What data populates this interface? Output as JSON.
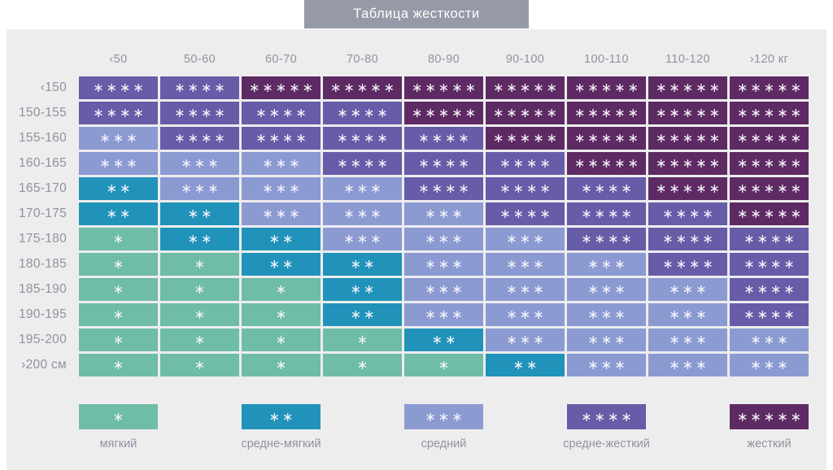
{
  "title": "Таблица жесткости",
  "chart_data": {
    "type": "heatmap",
    "title": "Таблица жесткости",
    "x_axis_note": "weight ranges, кг",
    "y_axis_note": "height ranges, см",
    "columns": [
      "‹50",
      "50-60",
      "60-70",
      "70-80",
      "80-90",
      "90-100",
      "100-110",
      "110-120",
      "›120 кг"
    ],
    "rows": [
      "‹150",
      "150-155",
      "155-160",
      "160-165",
      "165-170",
      "170-175",
      "175-180",
      "180-185",
      "185-190",
      "190-195",
      "195-200",
      "›200 см"
    ],
    "values": [
      [
        4,
        4,
        5,
        5,
        5,
        5,
        5,
        5,
        5
      ],
      [
        4,
        4,
        4,
        4,
        5,
        5,
        5,
        5,
        5
      ],
      [
        3,
        4,
        4,
        4,
        4,
        5,
        5,
        5,
        5
      ],
      [
        3,
        3,
        3,
        4,
        4,
        4,
        5,
        5,
        5
      ],
      [
        2,
        3,
        3,
        3,
        4,
        4,
        4,
        5,
        5
      ],
      [
        2,
        2,
        3,
        3,
        3,
        4,
        4,
        4,
        5
      ],
      [
        1,
        2,
        2,
        3,
        3,
        3,
        4,
        4,
        4
      ],
      [
        1,
        1,
        2,
        2,
        3,
        3,
        3,
        4,
        4
      ],
      [
        1,
        1,
        1,
        2,
        3,
        3,
        3,
        3,
        4
      ],
      [
        1,
        1,
        1,
        2,
        3,
        3,
        3,
        3,
        4
      ],
      [
        1,
        1,
        1,
        1,
        2,
        3,
        3,
        3,
        3
      ],
      [
        1,
        1,
        1,
        1,
        1,
        2,
        3,
        3,
        3
      ]
    ],
    "scale": [
      {
        "stars": 1,
        "label": "мягкий",
        "color": "#6FBCA7"
      },
      {
        "stars": 2,
        "label": "средне-мягкий",
        "color": "#2193BA"
      },
      {
        "stars": 3,
        "label": "средний",
        "color": "#8C9AD2"
      },
      {
        "stars": 4,
        "label": "средне-жесткий",
        "color": "#675CA7"
      },
      {
        "stars": 5,
        "label": "жесткий",
        "color": "#5E2A63"
      }
    ],
    "legend_position": "bottom",
    "grid": false
  },
  "style": {
    "star_glyph": "∗",
    "star_color": "#F4F4FA",
    "title_bar_color": "#9699A7",
    "panel_bg": "#EDEDEE",
    "page_bg": "#FFFFFF",
    "text_color": "#8F939F"
  }
}
